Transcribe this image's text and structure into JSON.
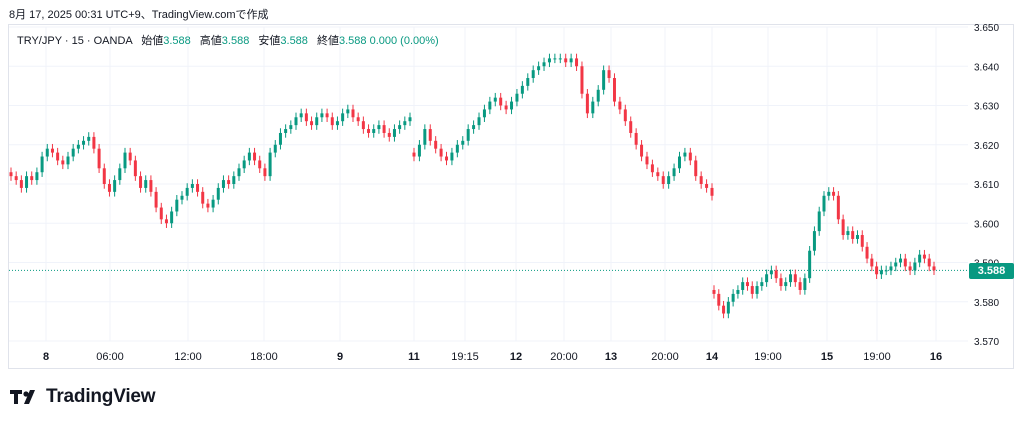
{
  "header": {
    "caption": "8月 17, 2025 00:31 UTC+9、TradingView.comで作成"
  },
  "legend": {
    "symbol": "TRY/JPY · 15 · OANDA",
    "open_label": "始値",
    "open": "3.588",
    "high_label": "高値",
    "high": "3.588",
    "low_label": "安値",
    "low": "3.588",
    "close_label": "終値",
    "close": "3.588",
    "change": "0.000 (0.00%)"
  },
  "last_price": "3.588",
  "brand": {
    "name": "TradingView"
  },
  "colors": {
    "up": "#089981",
    "down": "#f23645",
    "grid": "#f0f3fa",
    "text": "#131722"
  },
  "chart_data": {
    "type": "candlestick",
    "y_ticks": [
      "3.650",
      "3.640",
      "3.630",
      "3.620",
      "3.610",
      "3.600",
      "3.590",
      "3.580",
      "3.570"
    ],
    "ylim": [
      3.57,
      3.65
    ],
    "x_ticks": [
      "8",
      "06:00",
      "12:00",
      "18:00",
      "9",
      "11",
      "19:15",
      "12",
      "20:00",
      "13",
      "20:00",
      "14",
      "19:00",
      "15",
      "19:00",
      "16"
    ],
    "last_price": 3.588,
    "grid": true,
    "series": [
      {
        "segment": 1,
        "values": [
          3.612,
          3.611,
          3.609,
          3.612,
          3.611,
          3.613,
          3.617,
          3.619,
          3.618,
          3.616,
          3.615,
          3.617,
          3.619,
          3.62,
          3.621,
          3.622,
          3.619,
          3.614,
          3.61,
          3.608,
          3.611,
          3.614,
          3.618,
          3.616,
          3.612,
          3.609,
          3.611,
          3.608,
          3.604,
          3.601,
          3.6,
          3.603,
          3.606,
          3.607,
          3.609,
          3.61,
          3.608,
          3.605,
          3.604,
          3.606,
          3.609,
          3.611,
          3.61,
          3.612,
          3.614,
          3.616,
          3.618,
          3.616,
          3.614,
          3.612,
          3.618,
          3.62,
          3.623,
          3.624,
          3.625,
          3.627,
          3.628,
          3.626,
          3.625,
          3.627,
          3.628,
          3.627,
          3.625,
          3.626,
          3.628,
          3.629,
          3.627,
          3.626,
          3.624,
          3.623,
          3.624,
          3.625,
          3.623,
          3.622,
          3.624,
          3.625,
          3.626,
          3.627
        ]
      },
      {
        "segment": 2,
        "values": [
          3.617,
          3.62,
          3.624,
          3.621,
          3.619,
          3.617,
          3.616,
          3.618,
          3.62,
          3.621,
          3.624,
          3.625,
          3.627,
          3.629,
          3.631,
          3.632,
          3.63,
          3.629,
          3.631,
          3.633,
          3.635,
          3.637,
          3.639,
          3.64,
          3.641,
          3.642,
          3.642,
          3.642,
          3.641,
          3.642,
          3.64,
          3.633,
          3.628,
          3.631,
          3.634,
          3.639,
          3.637,
          3.631,
          3.629,
          3.626,
          3.623,
          3.62,
          3.617,
          3.615,
          3.613,
          3.612,
          3.61,
          3.612,
          3.614,
          3.617,
          3.618,
          3.616,
          3.612,
          3.61,
          3.609,
          3.607
        ]
      },
      {
        "segment": 3,
        "values": [
          3.582,
          3.579,
          3.577,
          3.58,
          3.582,
          3.583,
          3.585,
          3.584,
          3.582,
          3.584,
          3.585,
          3.587,
          3.588,
          3.586,
          3.584,
          3.585,
          3.587,
          3.585,
          3.583,
          3.586,
          3.593,
          3.598,
          3.603,
          3.607,
          3.608,
          3.607,
          3.601,
          3.597,
          3.598,
          3.596,
          3.597,
          3.594,
          3.591,
          3.589,
          3.587,
          3.588,
          3.588,
          3.589,
          3.59,
          3.591,
          3.589,
          3.588,
          3.59,
          3.592,
          3.591,
          3.589,
          3.588
        ]
      }
    ]
  }
}
